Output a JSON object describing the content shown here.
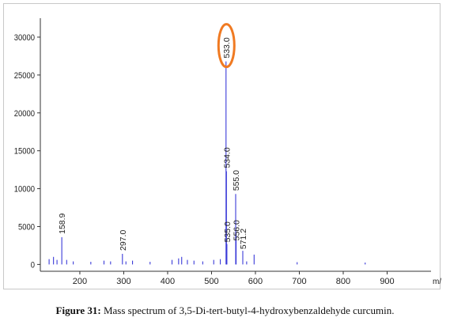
{
  "chart_data": {
    "type": "bar",
    "title": "",
    "xlabel": "m/z",
    "ylabel": "",
    "xlim": [
      110,
      1000
    ],
    "ylim": [
      -900,
      32500
    ],
    "x_ticks": [
      200,
      300,
      400,
      500,
      600,
      700,
      800,
      900
    ],
    "y_ticks": [
      0,
      5000,
      10000,
      15000,
      20000,
      25000,
      30000
    ],
    "series": [
      {
        "values": [
          {
            "x": 130,
            "y": 700
          },
          {
            "x": 140,
            "y": 1000
          },
          {
            "x": 148,
            "y": 600
          },
          {
            "x": 158.9,
            "y": 3600
          },
          {
            "x": 170,
            "y": 600
          },
          {
            "x": 185,
            "y": 400
          },
          {
            "x": 225,
            "y": 350
          },
          {
            "x": 255,
            "y": 500
          },
          {
            "x": 270,
            "y": 400
          },
          {
            "x": 297.0,
            "y": 1400
          },
          {
            "x": 305,
            "y": 400
          },
          {
            "x": 320,
            "y": 500
          },
          {
            "x": 360,
            "y": 350
          },
          {
            "x": 410,
            "y": 600
          },
          {
            "x": 425,
            "y": 800
          },
          {
            "x": 432,
            "y": 1000
          },
          {
            "x": 445,
            "y": 600
          },
          {
            "x": 460,
            "y": 500
          },
          {
            "x": 480,
            "y": 400
          },
          {
            "x": 505,
            "y": 600
          },
          {
            "x": 520,
            "y": 700
          },
          {
            "x": 533.0,
            "y": 26800
          },
          {
            "x": 534.0,
            "y": 12300
          },
          {
            "x": 535.0,
            "y": 2700
          },
          {
            "x": 555.0,
            "y": 9300
          },
          {
            "x": 556.0,
            "y": 4200
          },
          {
            "x": 571.2,
            "y": 1800
          },
          {
            "x": 580,
            "y": 400
          },
          {
            "x": 597,
            "y": 1300
          },
          {
            "x": 695,
            "y": 300
          },
          {
            "x": 850,
            "y": 250
          }
        ]
      }
    ],
    "peak_labels": [
      {
        "x": 158.9,
        "y": 3600,
        "text": "158.9"
      },
      {
        "x": 297.0,
        "y": 1400,
        "text": "297.0"
      },
      {
        "x": 533.0,
        "y": 26800,
        "text": "533.0",
        "highlighted": true
      },
      {
        "x": 534.0,
        "y": 12300,
        "text": "534.0"
      },
      {
        "x": 535.0,
        "y": 2700,
        "text": "535.0"
      },
      {
        "x": 555.0,
        "y": 9300,
        "text": "555.0"
      },
      {
        "x": 556.0,
        "y": 4200,
        "text": "556.0"
      },
      {
        "x": 571.2,
        "y": 1800,
        "text": "571.2"
      }
    ],
    "grid": false,
    "colors": {
      "line": "#3b3bd8",
      "axis": "#333333",
      "highlight_ring": "#f07a22",
      "frame": "#c8c8c8"
    }
  },
  "caption": {
    "label": "Figure 31:",
    "text": " Mass spectrum of 3,5-Di-tert-butyl-4-hydroxybenzaldehyde curcumin."
  }
}
